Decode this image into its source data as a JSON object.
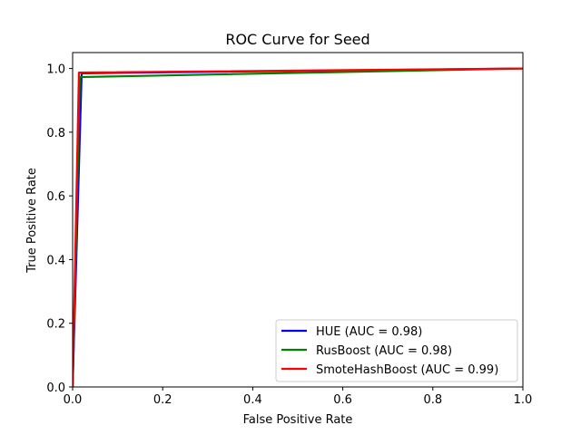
{
  "chart_data": {
    "type": "line",
    "title": "ROC Curve for Seed",
    "xlabel": "False Positive Rate",
    "ylabel": "True Positive Rate",
    "xlim": [
      0.0,
      1.0
    ],
    "ylim": [
      0.0,
      1.05
    ],
    "xticks": [
      "0.0",
      "0.2",
      "0.4",
      "0.6",
      "0.8",
      "1.0"
    ],
    "yticks": [
      "0.0",
      "0.2",
      "0.4",
      "0.6",
      "0.8",
      "1.0"
    ],
    "grid": false,
    "legend_position": "lower-right",
    "series": [
      {
        "name": "HUE (AUC = 0.98)",
        "color": "#0000ff",
        "x": [
          0.0,
          0.02,
          1.0
        ],
        "y": [
          0.0,
          0.985,
          1.0
        ]
      },
      {
        "name": "RusBoost (AUC = 0.98)",
        "color": "#008000",
        "x": [
          0.0,
          0.016,
          1.0
        ],
        "y": [
          0.0,
          0.973,
          1.0
        ]
      },
      {
        "name": "SmoteHashBoost (AUC = 0.99)",
        "color": "#ff0000",
        "x": [
          0.0,
          0.014,
          1.0
        ],
        "y": [
          0.0,
          0.987,
          1.0
        ]
      }
    ]
  }
}
